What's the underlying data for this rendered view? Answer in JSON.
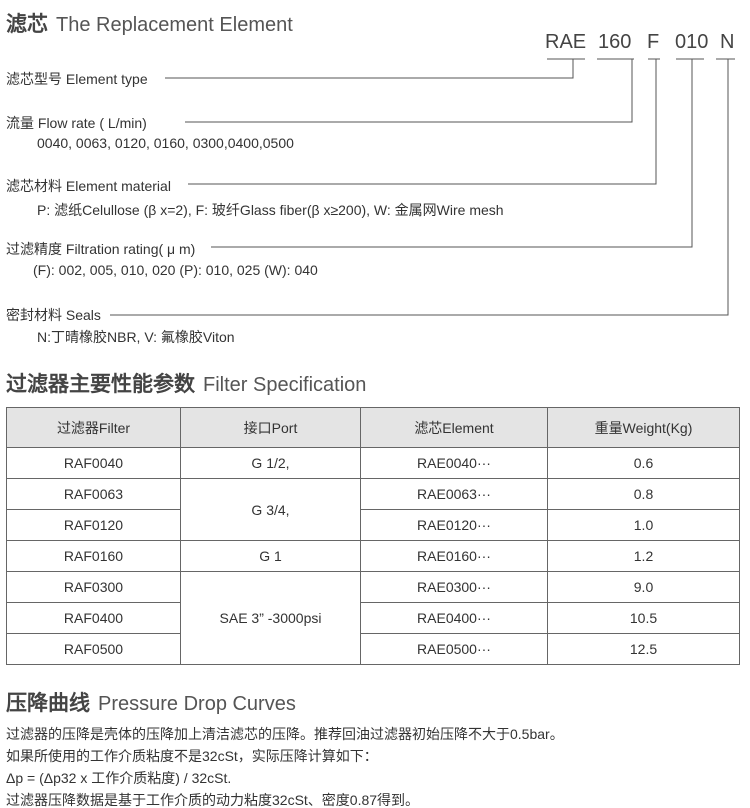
{
  "element": {
    "title_cn": "滤芯",
    "title_en": "The Replacement Element",
    "codes": [
      "RAE",
      "160",
      "F",
      "010",
      "N"
    ],
    "fields": [
      {
        "label": "滤芯型号 Element type",
        "detail": ""
      },
      {
        "label": "流量 Flow rate ( L/min)",
        "detail": "0040, 0063, 0120, 0160, 0300,0400,0500"
      },
      {
        "label": "滤芯材料 Element material",
        "detail": "P: 滤纸Celullose (β x=2),   F: 玻纤Glass fiber(β x≥200), W: 金属网Wire mesh"
      },
      {
        "label": "过滤精度 Filtration rating( μ m)",
        "detail": "(F): 002, 005, 010, 020 (P): 010, 025 (W): 040"
      },
      {
        "label": "密封材料 Seals",
        "detail": "N:丁晴橡胶NBR,  V: 氟橡胶Viton"
      }
    ]
  },
  "spec": {
    "title_cn": "过滤器主要性能参数",
    "title_en": "Filter Specification",
    "headers": [
      "过滤器Filter",
      "接口Port",
      "滤芯Element",
      "重量Weight(Kg)"
    ],
    "filters": [
      "RAF0040",
      "RAF0063",
      "RAF0120",
      "RAF0160",
      "RAF0300",
      "RAF0400",
      "RAF0500"
    ],
    "ports": [
      "G 1/2,",
      "G 3/4,",
      "G 1",
      "SAE 3” -3000psi"
    ],
    "elements": [
      "RAE0040···",
      "RAE0063···",
      "RAE0120···",
      "RAE0160···",
      "RAE0300···",
      "RAE0400···",
      "RAE0500···"
    ],
    "weights": [
      "0.6",
      "0.8",
      "1.0",
      "1.2",
      "9.0",
      "10.5",
      "12.5"
    ]
  },
  "pressure": {
    "title_cn": "压降曲线",
    "title_en": "Pressure Drop Curves",
    "lines": [
      "过滤器的压降是壳体的压降加上清洁滤芯的压降。推荐回油过滤器初始压降不大于0.5bar。",
      "如果所使用的工作介质粘度不是32cSt，实际压降计算如下：",
      "Δp = (Δp32 x 工作介质粘度) / 32cSt.",
      "过滤器压降数据是基于工作介质的动力粘度32cSt、密度0.87得到。"
    ]
  }
}
